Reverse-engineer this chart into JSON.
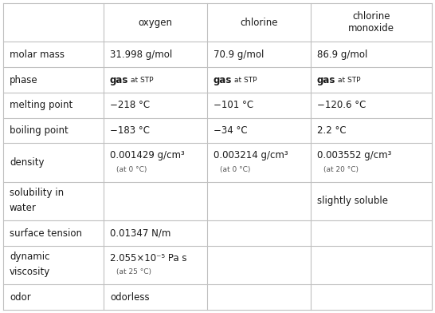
{
  "col_headers": [
    "",
    "oxygen",
    "chlorine",
    "chlorine\nmonoxide"
  ],
  "rows": [
    {
      "label": "molar mass",
      "label2": "",
      "cells": [
        {
          "text": "31.998 g/mol",
          "type": "simple"
        },
        {
          "text": "70.9 g/mol",
          "type": "simple"
        },
        {
          "text": "86.9 g/mol",
          "type": "simple"
        }
      ]
    },
    {
      "label": "phase",
      "label2": "",
      "cells": [
        {
          "type": "phase"
        },
        {
          "type": "phase"
        },
        {
          "type": "phase"
        }
      ]
    },
    {
      "label": "melting point",
      "label2": "",
      "cells": [
        {
          "text": "−218 °C",
          "type": "simple"
        },
        {
          "text": "−101 °C",
          "type": "simple"
        },
        {
          "text": "−120.6 °C",
          "type": "simple"
        }
      ]
    },
    {
      "label": "boiling point",
      "label2": "",
      "cells": [
        {
          "text": "−183 °C",
          "type": "simple"
        },
        {
          "text": "−34 °C",
          "type": "simple"
        },
        {
          "text": "2.2 °C",
          "type": "simple"
        }
      ]
    },
    {
      "label": "density",
      "label2": "",
      "cells": [
        {
          "main": "0.001429 g/cm³",
          "sub": "(at 0 °C)",
          "type": "twoline"
        },
        {
          "main": "0.003214 g/cm³",
          "sub": "(at 0 °C)",
          "type": "twoline"
        },
        {
          "main": "0.003552 g/cm³",
          "sub": "(at 20 °C)",
          "type": "twoline"
        }
      ]
    },
    {
      "label": "solubility in",
      "label2": "water",
      "cells": [
        {
          "text": "",
          "type": "simple"
        },
        {
          "text": "",
          "type": "simple"
        },
        {
          "text": "slightly soluble",
          "type": "simple"
        }
      ]
    },
    {
      "label": "surface tension",
      "label2": "",
      "cells": [
        {
          "text": "0.01347 N/m",
          "type": "simple"
        },
        {
          "text": "",
          "type": "simple"
        },
        {
          "text": "",
          "type": "simple"
        }
      ]
    },
    {
      "label": "dynamic",
      "label2": "viscosity",
      "cells": [
        {
          "main": "2.055×10⁻⁵ Pa s",
          "sub": "(at 25 °C)",
          "type": "twoline"
        },
        {
          "text": "",
          "type": "simple"
        },
        {
          "text": "",
          "type": "simple"
        }
      ]
    },
    {
      "label": "odor",
      "label2": "",
      "cells": [
        {
          "text": "odorless",
          "type": "simple"
        },
        {
          "text": "",
          "type": "simple"
        },
        {
          "text": "",
          "type": "simple"
        }
      ]
    }
  ],
  "bg_color": "#ffffff",
  "line_color": "#c0c0c0",
  "text_color": "#1a1a1a",
  "sub_color": "#555555",
  "font_size": 8.5,
  "font_size_sub": 6.5,
  "font_size_header": 8.5
}
